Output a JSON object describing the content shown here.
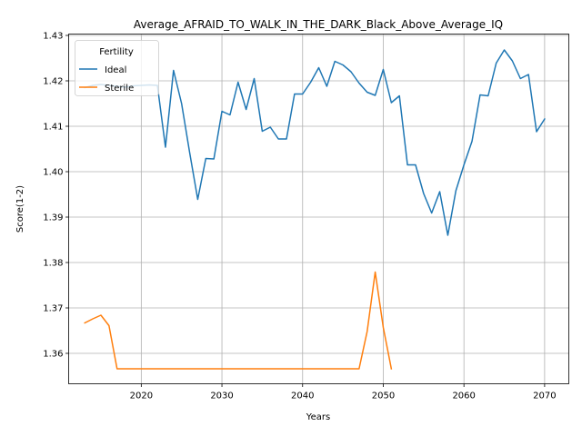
{
  "chart_data": {
    "type": "line",
    "title": "Average_AFRAID_TO_WALK_IN_THE_DARK_Black_Above_Average_IQ",
    "xlabel": "Years",
    "ylabel": "Score(1-2)",
    "xlim": [
      2011,
      2073
    ],
    "ylim": [
      1.3533,
      1.4303
    ],
    "xticks": [
      2020,
      2030,
      2040,
      2050,
      2060,
      2070
    ],
    "yticks": [
      1.36,
      1.37,
      1.38,
      1.39,
      1.4,
      1.41,
      1.42,
      1.43
    ],
    "ytick_labels": [
      "1.36",
      "1.37",
      "1.38",
      "1.39",
      "1.40",
      "1.41",
      "1.42",
      "1.43"
    ],
    "grid": true,
    "legend": {
      "title": "Fertility",
      "position": "top-left"
    },
    "series": [
      {
        "name": "Ideal",
        "color": "#1f77b4",
        "x": [
          2013,
          2014,
          2015,
          2016,
          2017,
          2018,
          2019,
          2020,
          2021,
          2022,
          2023,
          2024,
          2025,
          2026,
          2027,
          2028,
          2029,
          2030,
          2031,
          2032,
          2033,
          2034,
          2035,
          2036,
          2037,
          2038,
          2039,
          2040,
          2041,
          2042,
          2043,
          2044,
          2045,
          2046,
          2047,
          2048,
          2049,
          2050,
          2051,
          2052,
          2053,
          2054,
          2055,
          2056,
          2057,
          2058,
          2059,
          2060,
          2061,
          2062,
          2063,
          2064,
          2065,
          2066,
          2067,
          2068,
          2069,
          2070
        ],
        "y": [
          1.4185,
          1.419,
          1.4192,
          1.419,
          1.4188,
          1.4186,
          1.4189,
          1.419,
          1.4191,
          1.419,
          1.4054,
          1.4223,
          1.415,
          1.4042,
          1.3939,
          1.4029,
          1.4028,
          1.4133,
          1.4125,
          1.4197,
          1.4137,
          1.4205,
          1.4089,
          1.4098,
          1.4072,
          1.4072,
          1.4171,
          1.4171,
          1.4197,
          1.4229,
          1.4188,
          1.4243,
          1.4235,
          1.422,
          1.4195,
          1.4175,
          1.4168,
          1.4225,
          1.4152,
          1.4167,
          1.4015,
          1.4015,
          1.3952,
          1.3909,
          1.3956,
          1.386,
          1.3958,
          1.4015,
          1.4067,
          1.4169,
          1.4167,
          1.4239,
          1.4268,
          1.4244,
          1.4205,
          1.4214,
          1.4088,
          1.4116
        ]
      },
      {
        "name": "Sterile",
        "color": "#ff7f0e",
        "x": [
          2013,
          2014,
          2015,
          2016,
          2017,
          2018,
          2019,
          2020,
          2021,
          2022,
          2023,
          2024,
          2025,
          2026,
          2027,
          2028,
          2029,
          2030,
          2031,
          2032,
          2033,
          2034,
          2035,
          2036,
          2037,
          2038,
          2039,
          2040,
          2041,
          2042,
          2043,
          2044,
          2045,
          2046,
          2047,
          2048,
          2049,
          2050,
          2051
        ],
        "y": [
          1.3667,
          1.3676,
          1.3684,
          1.3661,
          1.3566,
          1.3566,
          1.3566,
          1.3566,
          1.3566,
          1.3566,
          1.3566,
          1.3566,
          1.3566,
          1.3566,
          1.3566,
          1.3566,
          1.3566,
          1.3566,
          1.3566,
          1.3566,
          1.3566,
          1.3566,
          1.3566,
          1.3566,
          1.3566,
          1.3566,
          1.3566,
          1.3566,
          1.3566,
          1.3566,
          1.3566,
          1.3566,
          1.3566,
          1.3566,
          1.3566,
          1.3648,
          1.3779,
          1.3657,
          1.3566
        ]
      }
    ]
  }
}
